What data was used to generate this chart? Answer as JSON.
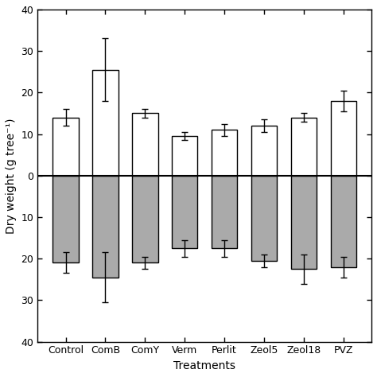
{
  "categories": [
    "Control",
    "ComB",
    "ComY",
    "Verm",
    "Perlit",
    "Zeol5",
    "Zeol18",
    "PVZ"
  ],
  "above_values": [
    14.0,
    25.5,
    15.0,
    9.5,
    11.0,
    12.0,
    14.0,
    18.0
  ],
  "above_errors": [
    2.0,
    7.5,
    1.0,
    1.0,
    1.5,
    1.5,
    1.0,
    2.5
  ],
  "below_values": [
    -21.0,
    -24.5,
    -21.0,
    -17.5,
    -17.5,
    -20.5,
    -22.5,
    -22.0
  ],
  "below_errors": [
    2.5,
    6.0,
    1.5,
    2.0,
    2.0,
    1.5,
    3.5,
    2.5
  ],
  "above_color": "#ffffff",
  "below_color": "#aaaaaa",
  "bar_edgecolor": "#000000",
  "error_color": "#000000",
  "ylabel": "Dry weight (g tree⁻¹)",
  "xlabel": "Treatments",
  "ylim": [
    -40,
    40
  ],
  "yticks": [
    -40,
    -30,
    -20,
    -10,
    0,
    10,
    20,
    30,
    40
  ],
  "ytick_labels": [
    "40",
    "30",
    "20",
    "10",
    "0",
    "10",
    "20",
    "30",
    "40"
  ],
  "bar_width": 0.65,
  "linewidth": 1.0,
  "capsize": 3,
  "figsize": [
    4.74,
    4.74
  ],
  "dpi": 100
}
